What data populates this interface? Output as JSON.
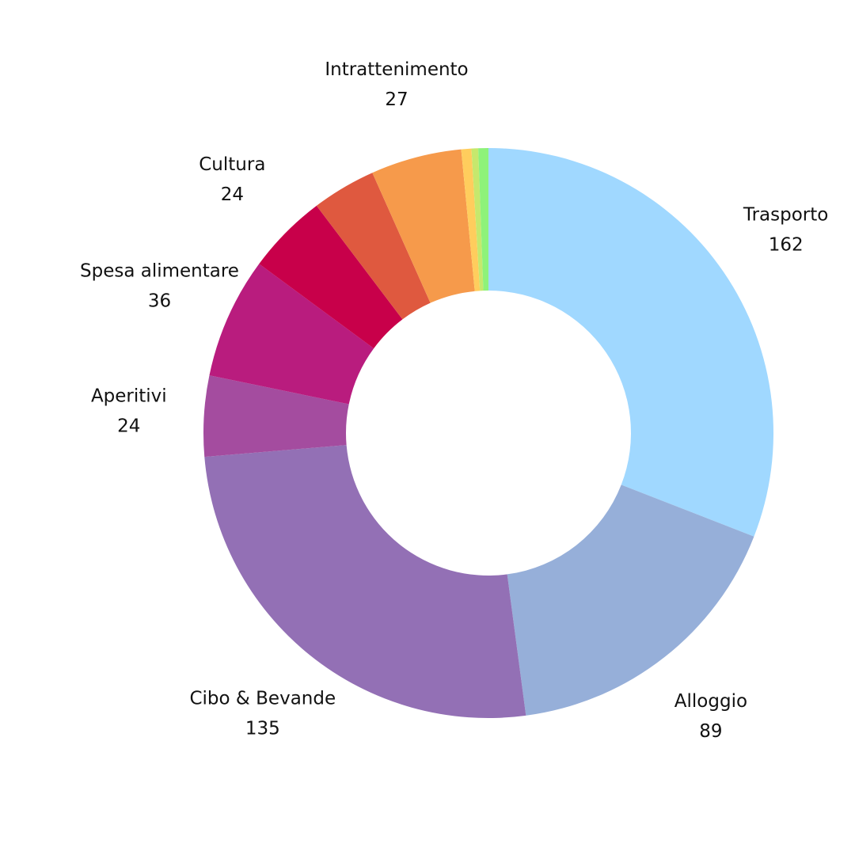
{
  "chart_data": {
    "type": "pie",
    "style": "donut",
    "title": "",
    "legend": "none",
    "slices": [
      {
        "label": "Trasporto",
        "value": 162,
        "color": "#A0D8FF",
        "show_label": true
      },
      {
        "label": "Alloggio",
        "value": 89,
        "color": "#96AFD9",
        "show_label": true
      },
      {
        "label": "Cibo & Bevande",
        "value": 135,
        "color": "#9370B5",
        "show_label": true
      },
      {
        "label": "Aperitivi",
        "value": 24,
        "color": "#A44C9F",
        "show_label": true
      },
      {
        "label": "Spesa alimentare",
        "value": 36,
        "color": "#B91C7E",
        "show_label": true
      },
      {
        "label": "Cultura",
        "value": 24,
        "color": "#C8004A",
        "show_label": true
      },
      {
        "label": "",
        "value": 19,
        "color": "#DF593F",
        "show_label": false
      },
      {
        "label": "Intrattenimento",
        "value": 27,
        "color": "#F69A4B",
        "show_label": true
      },
      {
        "label": "",
        "value": 3,
        "color": "#FFCD5D",
        "show_label": false
      },
      {
        "label": "",
        "value": 2,
        "color": "#C6E86D",
        "show_label": false
      },
      {
        "label": "",
        "value": 3,
        "color": "#8EF27A",
        "show_label": false
      }
    ]
  }
}
